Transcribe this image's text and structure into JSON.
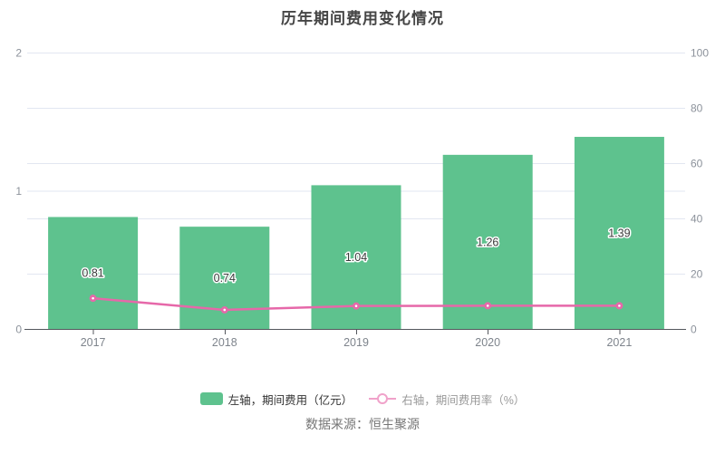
{
  "title": "历年期间费用变化情况",
  "source": "数据来源：恒生聚源",
  "legend": {
    "bar": {
      "label": "左轴，期间费用（亿元）"
    },
    "line": {
      "label": "右轴，期间费用率（%）"
    }
  },
  "colors": {
    "bar": "#5EC28E",
    "line": "#E668A9",
    "legend_line_icon": "#F0A2CA",
    "grid": "#E2E7F1",
    "axis": "#54575D",
    "title": "#454545",
    "bar_label": "#3B3B3B",
    "x_label": "#7E848C",
    "y_label": "#8C929B",
    "legend_text_bar": "#333333",
    "legend_text_line": "#9A9A9A",
    "source_text": "#767676",
    "background": "#FFFFFF"
  },
  "chart_data": {
    "type": "bar+line combo",
    "title": "历年期间费用变化情况",
    "categories": [
      "2017",
      "2018",
      "2019",
      "2020",
      "2021"
    ],
    "series": [
      {
        "name": "左轴，期间费用（亿元）",
        "type": "bar",
        "axis": "left",
        "values": [
          0.81,
          0.74,
          1.04,
          1.26,
          1.39
        ],
        "labels": [
          "0.81",
          "0.74",
          "1.04",
          "1.26",
          "1.39"
        ],
        "color": "#5EC28E"
      },
      {
        "name": "右轴，期间费用率（%）",
        "type": "line",
        "axis": "right",
        "values": [
          11.1,
          6.9,
          8.3,
          8.4,
          8.4
        ],
        "color": "#E668A9"
      }
    ],
    "left_axis": {
      "ticks": [
        0,
        1,
        2
      ],
      "range": [
        0,
        2
      ]
    },
    "right_axis": {
      "ticks": [
        0,
        20,
        40,
        60,
        80,
        100
      ],
      "range": [
        0,
        100
      ]
    },
    "grid": true,
    "legend_position": "bottom",
    "xlabel": "",
    "ylabel_left": "期间费用（亿元）",
    "ylabel_right": "期间费用率（%）"
  }
}
